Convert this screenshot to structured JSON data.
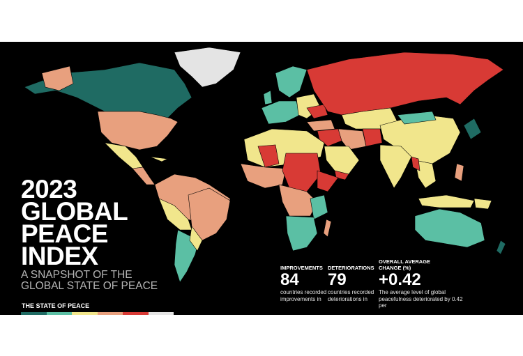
{
  "title_lines": [
    "2023",
    "GLOBAL",
    "PEACE",
    "INDEX"
  ],
  "subtitle_lines": [
    "A SNAPSHOT OF THE",
    "GLOBAL STATE OF PEACE"
  ],
  "legend": {
    "label": "THE STATE OF PEACE",
    "colors": [
      "#1f6b63",
      "#5bbfa4",
      "#f1e68c",
      "#e8a07e",
      "#d83a35",
      "#e4e4e4"
    ]
  },
  "stats": [
    {
      "label": "IMPROVEMENTS",
      "value": "84",
      "desc": "countries recorded improvements in"
    },
    {
      "label": "DETERIORATIONS",
      "value": "79",
      "desc": "countries recorded deteriorations in"
    },
    {
      "label": "OVERALL AVERAGE CHANGE (%)",
      "value": "+0.42",
      "desc": "The average level of global peacefulness deteriorated by 0.42 per"
    }
  ],
  "colors": {
    "background": "#000000",
    "very_high": "#1f6b63",
    "high": "#5bbfa4",
    "medium": "#f1e68c",
    "low": "#e8a07e",
    "very_low": "#d83a35",
    "not_included": "#e4e4e4"
  }
}
